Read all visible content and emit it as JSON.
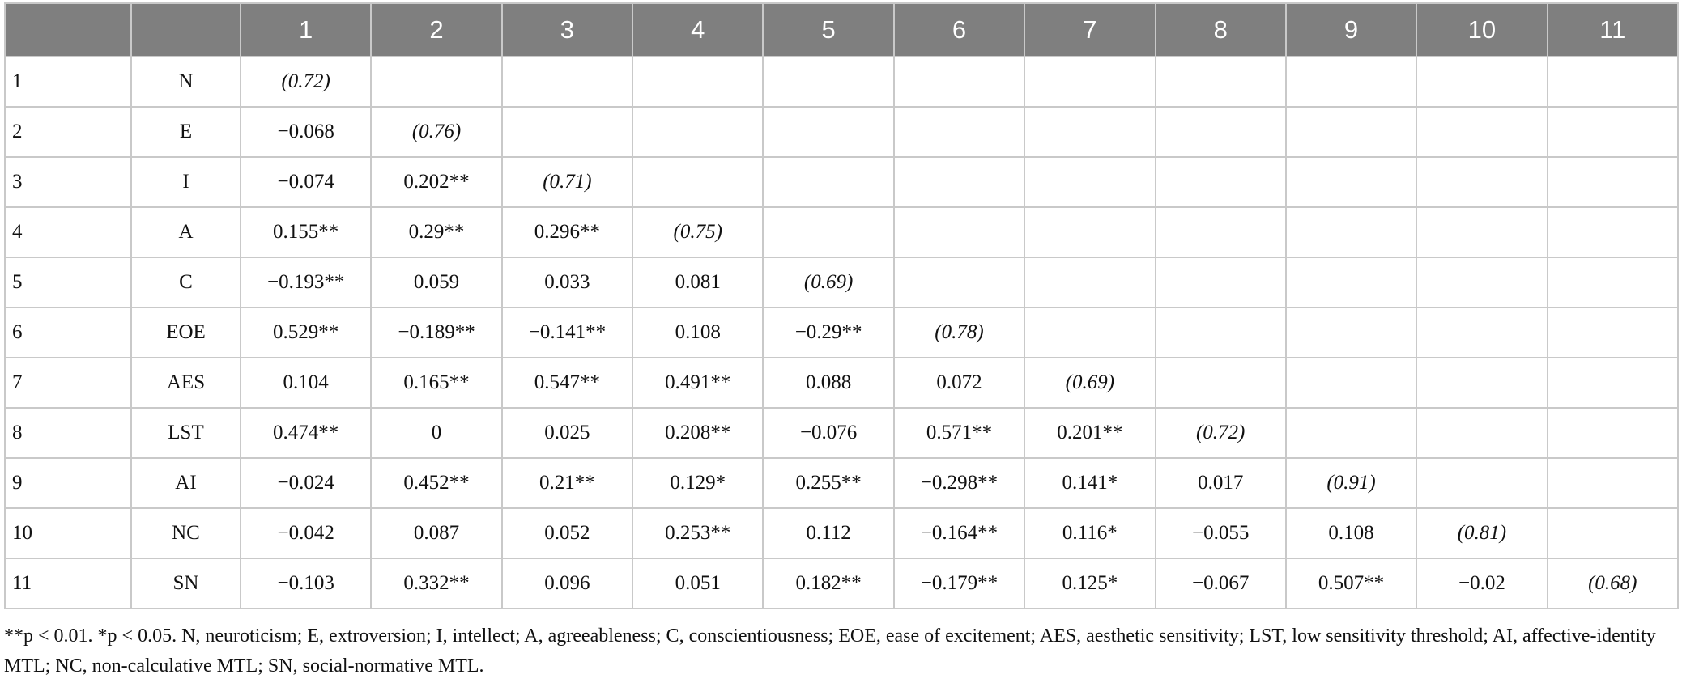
{
  "table": {
    "columns": [
      "1",
      "2",
      "3",
      "4",
      "5",
      "6",
      "7",
      "8",
      "9",
      "10",
      "11"
    ],
    "rows": [
      {
        "index": "1",
        "label": "N",
        "cells": [
          "(0.72)"
        ]
      },
      {
        "index": "2",
        "label": "E",
        "cells": [
          "−0.068",
          "(0.76)"
        ]
      },
      {
        "index": "3",
        "label": "I",
        "cells": [
          "−0.074",
          "0.202**",
          "(0.71)"
        ]
      },
      {
        "index": "4",
        "label": "A",
        "cells": [
          "0.155**",
          "0.29**",
          "0.296**",
          "(0.75)"
        ]
      },
      {
        "index": "5",
        "label": "C",
        "cells": [
          "−0.193**",
          "0.059",
          "0.033",
          "0.081",
          "(0.69)"
        ]
      },
      {
        "index": "6",
        "label": "EOE",
        "cells": [
          "0.529**",
          "−0.189**",
          "−0.141**",
          "0.108",
          "−0.29**",
          "(0.78)"
        ]
      },
      {
        "index": "7",
        "label": "AES",
        "cells": [
          "0.104",
          "0.165**",
          "0.547**",
          "0.491**",
          "0.088",
          "0.072",
          "(0.69)"
        ]
      },
      {
        "index": "8",
        "label": "LST",
        "cells": [
          "0.474**",
          "0",
          "0.025",
          "0.208**",
          "−0.076",
          "0.571**",
          "0.201**",
          "(0.72)"
        ]
      },
      {
        "index": "9",
        "label": "AI",
        "cells": [
          "−0.024",
          "0.452**",
          "0.21**",
          "0.129*",
          "0.255**",
          "−0.298**",
          "0.141*",
          "0.017",
          "(0.91)"
        ]
      },
      {
        "index": "10",
        "label": "NC",
        "cells": [
          "−0.042",
          "0.087",
          "0.052",
          "0.253**",
          "0.112",
          "−0.164**",
          "0.116*",
          "−0.055",
          "0.108",
          "(0.81)"
        ]
      },
      {
        "index": "11",
        "label": "SN",
        "cells": [
          "−0.103",
          "0.332**",
          "0.096",
          "0.051",
          "0.182**",
          "−0.179**",
          "0.125*",
          "−0.067",
          "0.507**",
          "−0.02",
          "(0.68)"
        ]
      }
    ]
  },
  "footnote": "**p < 0.01. *p < 0.05. N, neuroticism; E, extroversion; I, intellect; A, agreeableness; C, conscientiousness; EOE, ease of excitement; AES, aesthetic sensitivity; LST, low sensitivity threshold; AI, affective-identity MTL; NC, non-calculative MTL; SN, social-normative MTL."
}
